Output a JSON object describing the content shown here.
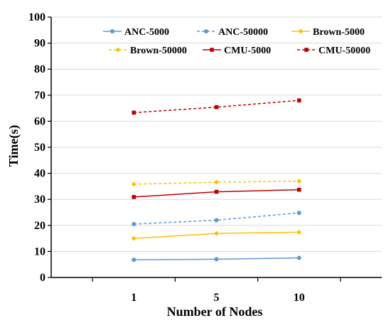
{
  "chart_data": {
    "type": "line",
    "xlabel": "Number of Nodes",
    "ylabel": "Time(s)",
    "categories": [
      "1",
      "5",
      "10"
    ],
    "ylim": [
      0,
      100
    ],
    "yticks": [
      0,
      10,
      20,
      30,
      40,
      50,
      60,
      70,
      80,
      90,
      100
    ],
    "grid": "horizontal",
    "legend_position": "top",
    "series": [
      {
        "name": "ANC-5000",
        "values": [
          6.8,
          7.0,
          7.5
        ],
        "color": "#5B9BD5",
        "dash": "solid",
        "marker": "circle"
      },
      {
        "name": "ANC-50000",
        "values": [
          20.5,
          22.0,
          24.8
        ],
        "color": "#5B9BD5",
        "dash": "dashed",
        "marker": "circle"
      },
      {
        "name": "Brown-5000",
        "values": [
          15.0,
          16.9,
          17.4
        ],
        "color": "#FFC000",
        "dash": "solid",
        "marker": "diamond"
      },
      {
        "name": "Brown-50000",
        "values": [
          35.8,
          36.6,
          37.0
        ],
        "color": "#FFC000",
        "dash": "dashed",
        "marker": "diamond"
      },
      {
        "name": "CMU-5000",
        "values": [
          30.9,
          32.9,
          33.7
        ],
        "color": "#C00000",
        "dash": "solid",
        "marker": "square"
      },
      {
        "name": "CMU-50000",
        "values": [
          63.3,
          65.4,
          68.0
        ],
        "color": "#C00000",
        "dash": "dashed",
        "marker": "square"
      }
    ]
  }
}
